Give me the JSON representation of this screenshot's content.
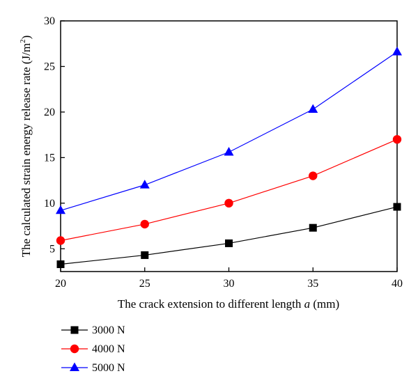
{
  "chart_data": {
    "type": "line",
    "title": "",
    "xlabel": {
      "prefix": "The crack extension to different length ",
      "var": "a",
      "suffix": " (mm)"
    },
    "ylabel": {
      "main": "The calculated strain energy release rate (J/m",
      "sup": "2",
      "close": ")"
    },
    "x": [
      20,
      25,
      30,
      35,
      40
    ],
    "xlim": [
      20,
      40
    ],
    "ylim": [
      2.5,
      30
    ],
    "xticks": [
      "20",
      "25",
      "30",
      "35",
      "40"
    ],
    "yticks": [
      "5",
      "10",
      "15",
      "20",
      "25",
      "30"
    ],
    "grid": false,
    "legend_position": "below-left",
    "series": [
      {
        "name": "3000 N",
        "color": "#000000",
        "marker": "square",
        "values": [
          3.3,
          4.3,
          5.6,
          7.3,
          9.6
        ]
      },
      {
        "name": "4000 N",
        "color": "#ff0000",
        "marker": "circle",
        "values": [
          5.9,
          7.7,
          10.0,
          13.0,
          17.0
        ]
      },
      {
        "name": "5000 N",
        "color": "#0000ff",
        "marker": "triangle",
        "values": [
          9.2,
          12.0,
          15.6,
          20.3,
          26.6
        ]
      }
    ]
  }
}
